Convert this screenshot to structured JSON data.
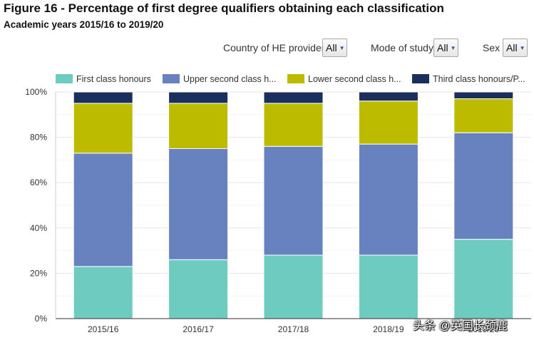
{
  "header": {
    "title": "Figure 16 - Percentage of first degree qualifiers obtaining each classification",
    "subtitle": "Academic years 2015/16 to 2019/20"
  },
  "filters": [
    {
      "label": "Country of HE provider",
      "value": "All"
    },
    {
      "label": "Mode of study",
      "value": "All"
    },
    {
      "label": "Sex",
      "value": "All"
    }
  ],
  "icons": {
    "dropdown": "chevron-down-icon"
  },
  "chart_data": {
    "type": "bar",
    "stacked": true,
    "title": "",
    "xlabel": "",
    "ylabel": "",
    "ylim": [
      0,
      100
    ],
    "yticks": [
      0,
      20,
      40,
      60,
      80,
      100
    ],
    "ytick_labels": [
      "0%",
      "20%",
      "40%",
      "60%",
      "80%",
      "100%"
    ],
    "grid": true,
    "legend_position": "top",
    "categories": [
      "2015/16",
      "2016/17",
      "2017/18",
      "2018/19",
      "2019/20"
    ],
    "series": [
      {
        "name": "First class honours",
        "legend_label": "First class honours",
        "color": "#6ecbbf",
        "values": [
          23,
          26,
          28,
          28,
          35
        ]
      },
      {
        "name": "Upper second class honours",
        "legend_label": "Upper second class h...",
        "color": "#6782bf",
        "values": [
          50,
          49,
          48,
          49,
          47
        ]
      },
      {
        "name": "Lower second class honours",
        "legend_label": "Lower second class h...",
        "color": "#bdbb00",
        "values": [
          22,
          20,
          19,
          19,
          15
        ]
      },
      {
        "name": "Third class honours/Pass",
        "legend_label": "Third class honours/P...",
        "color": "#1b2f5e",
        "values": [
          5,
          5,
          5,
          4,
          3
        ]
      }
    ]
  },
  "watermark": "头条 @英国长颈鹿"
}
